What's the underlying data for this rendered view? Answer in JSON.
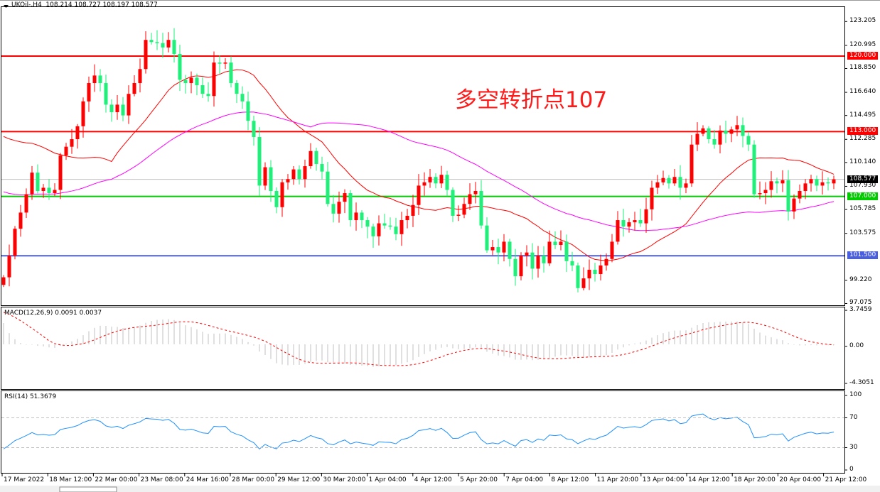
{
  "header": {
    "symbol": "UKOil-,H4",
    "ohlc": "108.214 108.727 108.197 108.577"
  },
  "annotation": "多空转折点107",
  "colors": {
    "up": "#ff0000",
    "down": "#1ef07a",
    "ma_fast": "#ff0000",
    "ma_slow": "#ff00ff",
    "macd_hist": "#c0c0c0",
    "macd_signal": "#ff0000",
    "rsi": "#1e90ff"
  },
  "chart_data": [
    {
      "type": "candlestick",
      "title": "UKOil-,H4",
      "ylim": [
        97.075,
        123.205
      ],
      "grid": false,
      "y_ticks": [
        "123.205",
        "120.995",
        "118.850",
        "116.640",
        "114.495",
        "112.285",
        "110.140",
        "107.930",
        "105.785",
        "103.575",
        "99.220",
        "97.075"
      ],
      "x_ticks": [
        "17 Mar 2022",
        "18 Mar 12:00",
        "22 Mar 00:00",
        "23 Mar 08:00",
        "24 Mar 16:00",
        "28 Mar 00:00",
        "29 Mar 12:00",
        "30 Mar 20:00",
        "1 Apr 04:00",
        "4 Apr 12:00",
        "5 Apr 20:00",
        "7 Apr 04:00",
        "8 Apr 12:00",
        "11 Apr 20:00",
        "13 Apr 04:00",
        "14 Apr 12:00",
        "18 Apr 20:00",
        "20 Apr 04:00",
        "21 Apr 12:00"
      ],
      "first_open": 98.8,
      "closes": [
        99.5,
        101.5,
        104,
        105.5,
        107.2,
        109.2,
        107.5,
        107.8,
        107.3,
        107.6,
        110.8,
        111.6,
        112.3,
        113.5,
        115.8,
        117.5,
        118.2,
        117.5,
        115.5,
        114.8,
        115.5,
        114.5,
        116.5,
        117.5,
        118.8,
        121.5,
        121.3,
        121.2,
        120.8,
        121.5,
        120.2,
        117.8,
        117.5,
        118.0,
        117.3,
        116.5,
        116.3,
        119.4,
        119.3,
        119.4,
        117.5,
        116.5,
        115.8,
        114,
        112.5,
        108,
        109.7,
        107.5,
        106,
        108.3,
        108.6,
        109.5,
        108.6,
        109.8,
        111.2,
        110,
        109.3,
        106.3,
        105.4,
        106.5,
        107.3,
        104.8,
        105.5,
        104.8,
        104.2,
        103.3,
        104.5,
        104.3,
        104.2,
        103.5,
        104.8,
        105.2,
        106.2,
        108,
        108.3,
        108.8,
        108.2,
        109,
        107.6,
        105.2,
        105.3,
        106.3,
        107.2,
        107.5,
        104.3,
        102,
        102.3,
        101.8,
        102.8,
        101.2,
        99.6,
        101.5,
        101.8,
        100.3,
        101.5,
        100.8,
        102.8,
        102.5,
        102.8,
        101,
        100.6,
        98.5,
        99.4,
        100.2,
        99.8,
        100.6,
        101.2,
        102.8,
        104.8,
        104.2,
        104.6,
        104.8,
        104.5,
        105.8,
        107.8,
        108.3,
        108.7,
        108.2,
        108.8,
        107.8,
        108.2,
        111.8,
        112.8,
        113.3,
        112.3,
        111.8,
        113.1,
        112.8,
        113.2,
        113.6,
        112.6,
        111.8,
        107.2,
        107.3,
        107.6,
        108.4,
        108.2,
        108.5,
        105.6,
        106.8,
        107.5,
        108.2,
        108.6,
        108.0,
        108.3,
        108.2,
        108.577
      ],
      "levels": [
        {
          "value": 120.0,
          "label": "120.000",
          "color": "#ff0000"
        },
        {
          "value": 113.0,
          "label": "113.000",
          "color": "#ff0000"
        },
        {
          "value": 107.0,
          "label": "107.000",
          "color": "#00cc00"
        },
        {
          "value": 101.5,
          "label": "101.500",
          "color": "#4a5ee0"
        }
      ],
      "current_price": {
        "value": 108.577,
        "label": "108.577"
      }
    },
    {
      "type": "bar+line",
      "title": "MACD(12,26,9) 0.0091 0.0037",
      "ylim": [
        -4.3051,
        3.7459
      ],
      "y_ticks": [
        "3.7459",
        "0.00",
        "-4.3051"
      ]
    },
    {
      "type": "line",
      "title": "RSI(14) 51.3679",
      "ylim": [
        0,
        100
      ],
      "y_ticks": [
        "100",
        "70",
        "30",
        "0"
      ],
      "levels": [
        70,
        30
      ]
    }
  ]
}
